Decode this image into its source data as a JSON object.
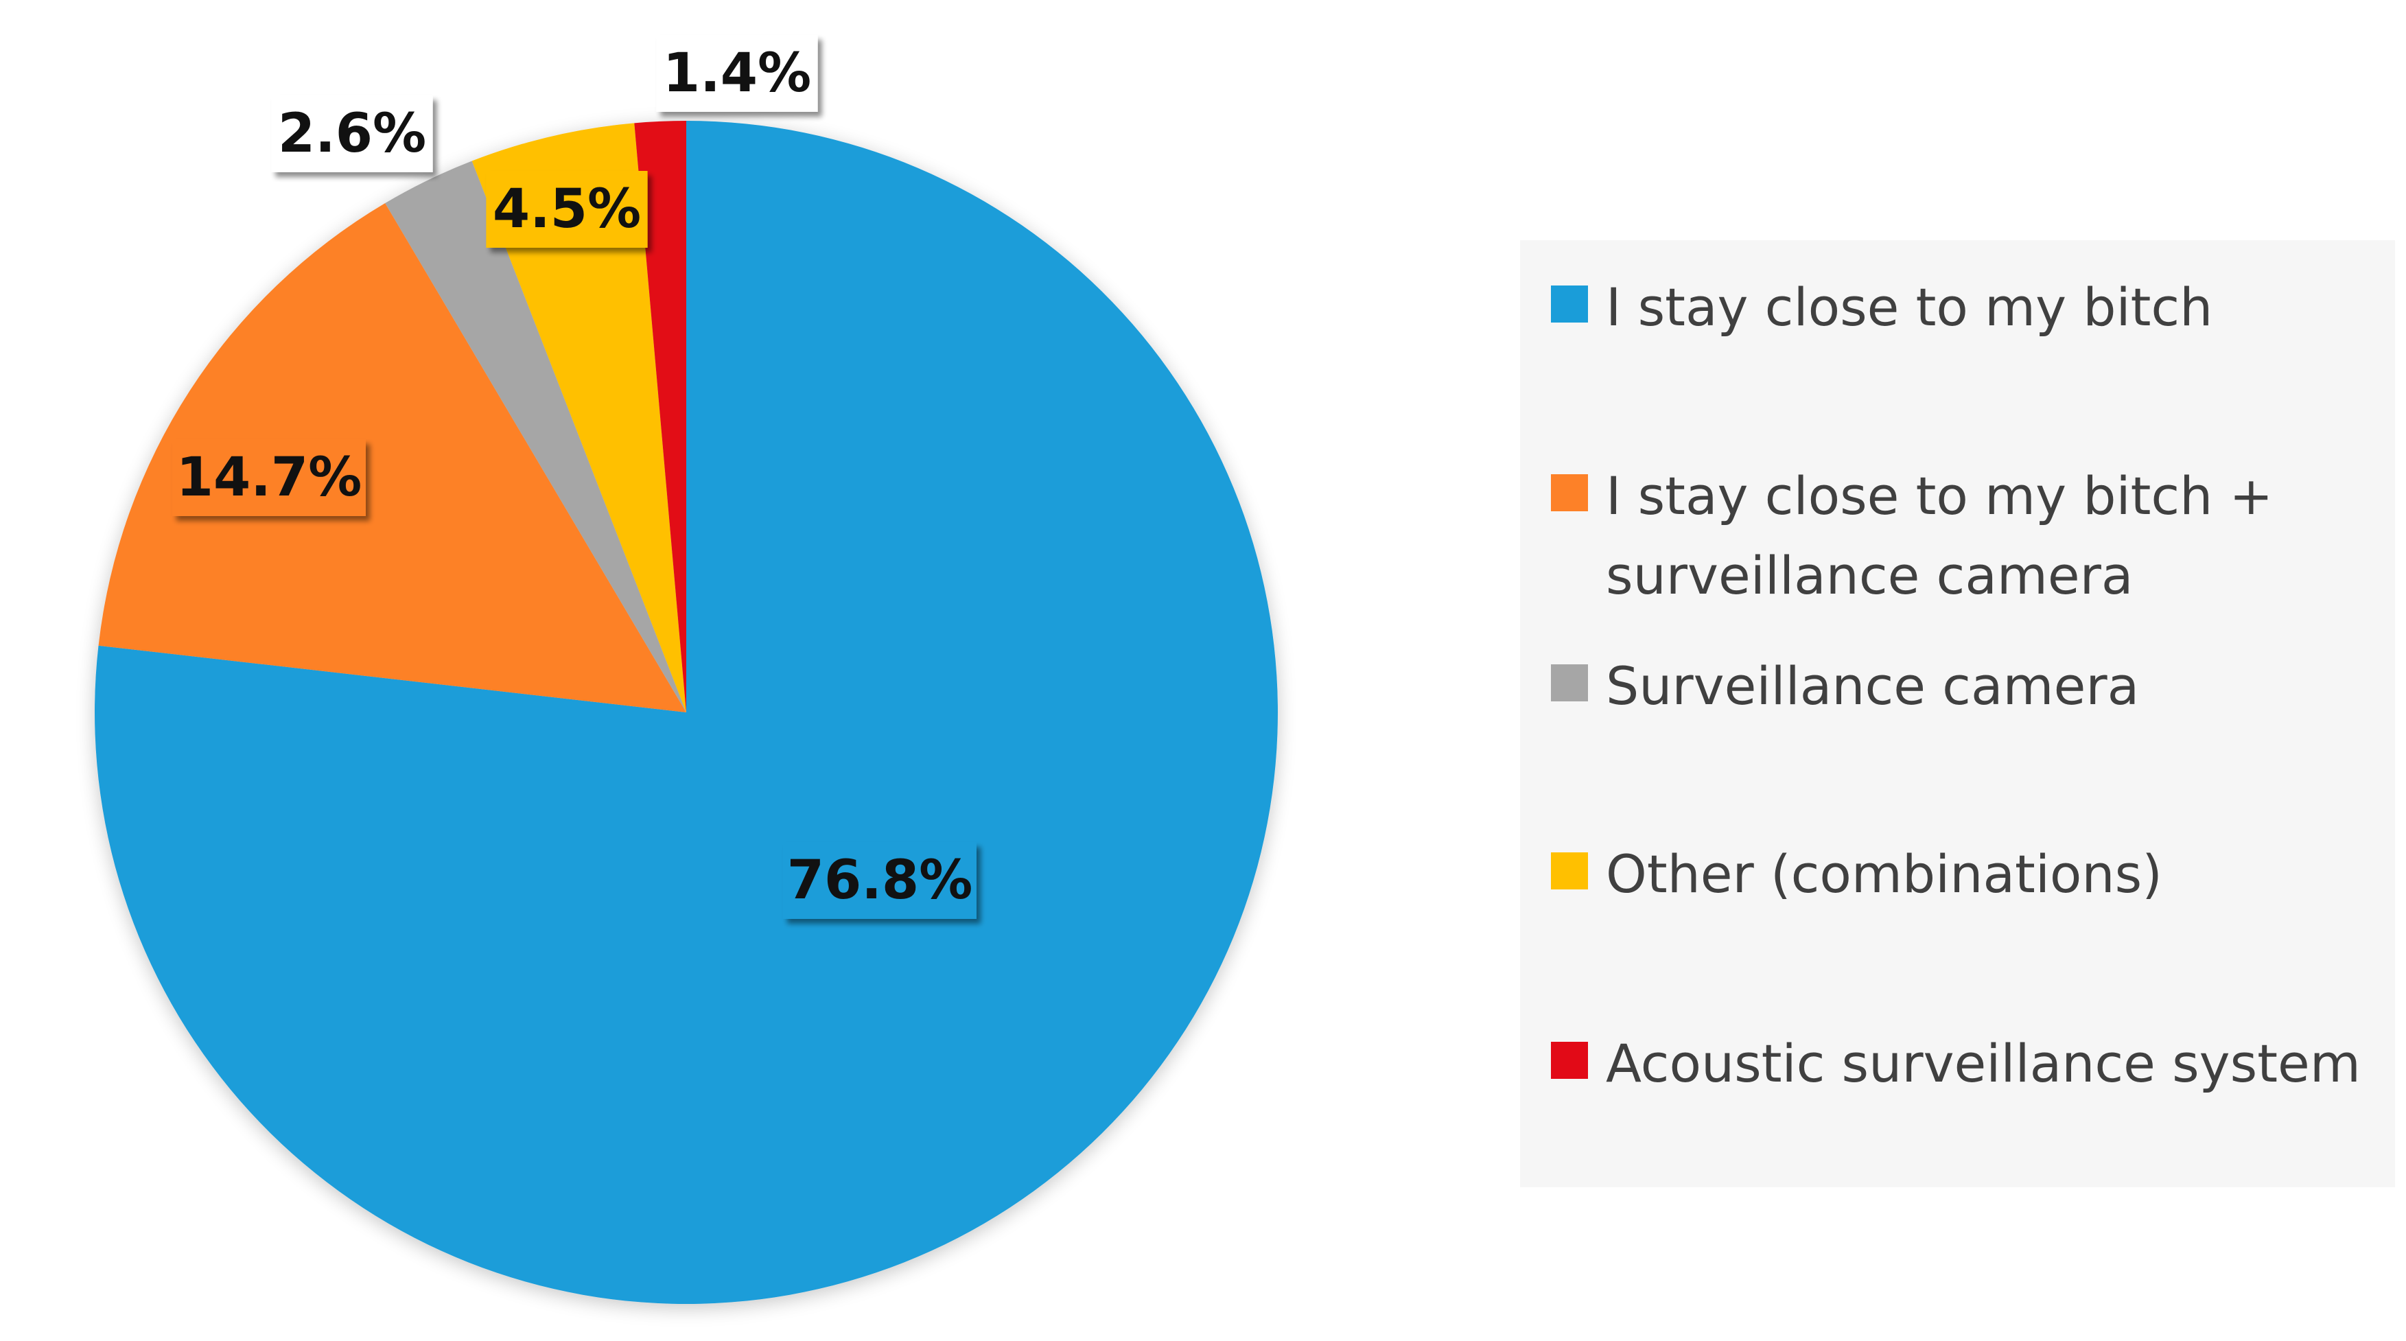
{
  "chart_data": {
    "type": "pie",
    "start_angle_deg": 0,
    "direction": "clockwise",
    "slices": [
      {
        "label": "I stay close to my bitch",
        "value": 76.8,
        "display": "76.8%",
        "color": "#1a9dd9"
      },
      {
        "label": "I stay close to my bitch + surveillance camera",
        "value": 14.7,
        "display": "14.7%",
        "color": "#fd8128"
      },
      {
        "label": "Surveillance camera",
        "value": 2.6,
        "display": "2.6%",
        "color": "#a6a6a6"
      },
      {
        "label": "Other (combinations)",
        "value": 4.5,
        "display": "4.5%",
        "color": "#ffc000"
      },
      {
        "label": "Acoustic surveillance system",
        "value": 1.4,
        "display": "1.4%",
        "color": "#e20a17"
      }
    ],
    "legend": {
      "placement": "right",
      "entries": [
        "I stay close to my bitch",
        "I stay close to my bitch +\nsurveillance camera",
        "Surveillance camera",
        "Other (combinations)",
        "Acoustic surveillance system"
      ]
    }
  }
}
